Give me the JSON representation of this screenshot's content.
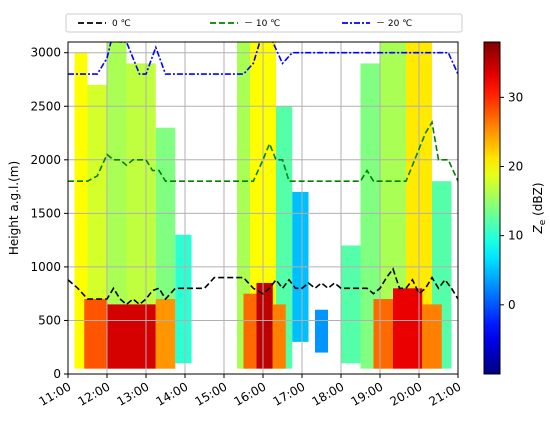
{
  "chart_data": {
    "type": "heatmap",
    "title": "",
    "xlabel": "",
    "ylabel": "Height a.g.l.(m)",
    "xlim": [
      "11:00",
      "21:00"
    ],
    "ylim": [
      0,
      3100
    ],
    "x_ticks": [
      "11:00",
      "12:00",
      "13:00",
      "14:00",
      "15:00",
      "16:00",
      "17:00",
      "18:00",
      "19:00",
      "20:00",
      "21:00"
    ],
    "y_ticks": [
      "0",
      "500",
      "1000",
      "1500",
      "2000",
      "2500",
      "3000"
    ],
    "grid": true,
    "colorbar": {
      "label_base": "Z",
      "label_sub": "e",
      "label_unit": " (dBZ)",
      "range": [
        -10,
        38
      ],
      "ticks": [
        "0",
        "10",
        "20",
        "30"
      ],
      "colormap": "jet"
    },
    "legend": {
      "placement": "top",
      "entries": [
        {
          "label": "0 ℃",
          "color": "#000000"
        },
        {
          "label": "－ 10 ℃",
          "color": "#008000"
        },
        {
          "label": "－ 20 ℃",
          "color": "#0000ff"
        }
      ]
    },
    "series": [
      {
        "name": "0 ℃",
        "color": "#000000",
        "x": [
          "11:00",
          "11:15",
          "11:30",
          "11:45",
          "12:00",
          "12:10",
          "12:20",
          "12:30",
          "12:40",
          "12:50",
          "13:00",
          "13:10",
          "13:20",
          "13:30",
          "13:45",
          "14:00",
          "14:15",
          "14:30",
          "14:45",
          "15:00",
          "15:15",
          "15:30",
          "15:45",
          "16:00",
          "16:10",
          "16:20",
          "16:30",
          "16:40",
          "16:50",
          "17:00",
          "17:10",
          "17:20",
          "17:30",
          "17:40",
          "17:50",
          "18:00",
          "18:10",
          "18:20",
          "18:30",
          "18:40",
          "18:50",
          "19:00",
          "19:10",
          "19:20",
          "19:30",
          "19:40",
          "19:50",
          "20:00",
          "20:10",
          "20:20",
          "20:30",
          "20:40",
          "20:50",
          "21:00"
        ],
        "y": [
          880,
          800,
          700,
          700,
          700,
          800,
          700,
          650,
          700,
          650,
          700,
          780,
          800,
          700,
          800,
          800,
          800,
          800,
          900,
          900,
          900,
          900,
          800,
          750,
          800,
          880,
          800,
          880,
          800,
          800,
          850,
          800,
          850,
          800,
          850,
          800,
          800,
          800,
          800,
          800,
          750,
          800,
          900,
          980,
          800,
          800,
          880,
          750,
          800,
          900,
          800,
          880,
          800,
          700
        ]
      },
      {
        "name": "－ 10 ℃",
        "color": "#008000",
        "x": [
          "11:00",
          "11:30",
          "11:45",
          "12:00",
          "12:10",
          "12:20",
          "12:30",
          "12:40",
          "12:50",
          "13:00",
          "13:10",
          "13:20",
          "13:30",
          "13:45",
          "14:00",
          "14:30",
          "15:00",
          "15:30",
          "15:45",
          "16:00",
          "16:10",
          "16:20",
          "16:30",
          "16:40",
          "16:50",
          "17:00",
          "17:30",
          "18:00",
          "18:30",
          "18:40",
          "18:50",
          "19:00",
          "19:20",
          "19:40",
          "19:50",
          "20:00",
          "20:10",
          "20:20",
          "20:30",
          "20:45",
          "21:00"
        ],
        "y": [
          1800,
          1800,
          1850,
          2050,
          2000,
          2000,
          1950,
          2000,
          2000,
          2000,
          1900,
          1900,
          1800,
          1800,
          1800,
          1800,
          1800,
          1800,
          1800,
          2000,
          2150,
          2000,
          2000,
          1800,
          1800,
          1800,
          1800,
          1800,
          1800,
          1900,
          1800,
          1800,
          1800,
          1800,
          1950,
          2100,
          2250,
          2350,
          2000,
          2000,
          1800
        ]
      },
      {
        "name": "－ 20 ℃",
        "color": "#0000ff",
        "x": [
          "11:00",
          "11:45",
          "12:00",
          "12:10",
          "12:20",
          "12:30",
          "12:40",
          "12:50",
          "13:00",
          "13:15",
          "13:30",
          "14:00",
          "14:30",
          "15:00",
          "15:30",
          "15:45",
          "16:00",
          "16:15",
          "16:30",
          "16:45",
          "17:00",
          "18:00",
          "18:30",
          "18:45",
          "19:00",
          "19:15",
          "19:30",
          "20:00",
          "20:30",
          "20:45",
          "21:00"
        ],
        "y": [
          2800,
          2800,
          2950,
          3200,
          3100,
          3100,
          2950,
          2800,
          2800,
          3050,
          2800,
          2800,
          2800,
          2800,
          2800,
          2900,
          3200,
          3100,
          2900,
          3000,
          3000,
          3000,
          3000,
          3000,
          3000,
          3000,
          3000,
          3000,
          3000,
          3000,
          2800
        ]
      }
    ],
    "reflectivity_blocks": [
      {
        "t0": "11:10",
        "t1": "11:30",
        "h0": 50,
        "h1": 3000,
        "dbz": 20
      },
      {
        "t0": "11:30",
        "t1": "12:00",
        "h0": 50,
        "h1": 2700,
        "dbz": 18
      },
      {
        "t0": "12:00",
        "t1": "12:30",
        "h0": 50,
        "h1": 3100,
        "dbz": 16
      },
      {
        "t0": "12:30",
        "t1": "13:15",
        "h0": 50,
        "h1": 2900,
        "dbz": 17
      },
      {
        "t0": "13:15",
        "t1": "13:45",
        "h0": 50,
        "h1": 2300,
        "dbz": 14
      },
      {
        "t0": "13:45",
        "t1": "14:10",
        "h0": 100,
        "h1": 1300,
        "dbz": 10
      },
      {
        "t0": "15:20",
        "t1": "15:40",
        "h0": 50,
        "h1": 3100,
        "dbz": 16
      },
      {
        "t0": "15:40",
        "t1": "16:20",
        "h0": 50,
        "h1": 3100,
        "dbz": 20
      },
      {
        "t0": "16:20",
        "t1": "16:45",
        "h0": 50,
        "h1": 2500,
        "dbz": 12
      },
      {
        "t0": "16:45",
        "t1": "17:10",
        "h0": 300,
        "h1": 1700,
        "dbz": 5
      },
      {
        "t0": "17:20",
        "t1": "17:40",
        "h0": 200,
        "h1": 600,
        "dbz": 3
      },
      {
        "t0": "18:00",
        "t1": "18:30",
        "h0": 100,
        "h1": 1200,
        "dbz": 12
      },
      {
        "t0": "18:30",
        "t1": "19:00",
        "h0": 50,
        "h1": 2900,
        "dbz": 14
      },
      {
        "t0": "19:00",
        "t1": "19:40",
        "h0": 50,
        "h1": 3100,
        "dbz": 16
      },
      {
        "t0": "19:40",
        "t1": "20:20",
        "h0": 50,
        "h1": 3100,
        "dbz": 21
      },
      {
        "t0": "20:20",
        "t1": "20:50",
        "h0": 50,
        "h1": 1800,
        "dbz": 12
      },
      {
        "t0": "11:25",
        "t1": "12:00",
        "h0": 50,
        "h1": 700,
        "dbz": 28
      },
      {
        "t0": "12:00",
        "t1": "13:15",
        "h0": 50,
        "h1": 650,
        "dbz": 34
      },
      {
        "t0": "13:15",
        "t1": "13:45",
        "h0": 50,
        "h1": 700,
        "dbz": 25
      },
      {
        "t0": "15:30",
        "t1": "15:50",
        "h0": 50,
        "h1": 750,
        "dbz": 27
      },
      {
        "t0": "15:50",
        "t1": "16:15",
        "h0": 50,
        "h1": 850,
        "dbz": 35
      },
      {
        "t0": "16:15",
        "t1": "16:35",
        "h0": 50,
        "h1": 650,
        "dbz": 26
      },
      {
        "t0": "18:50",
        "t1": "19:20",
        "h0": 50,
        "h1": 700,
        "dbz": 27
      },
      {
        "t0": "19:20",
        "t1": "20:05",
        "h0": 50,
        "h1": 800,
        "dbz": 33
      },
      {
        "t0": "20:05",
        "t1": "20:35",
        "h0": 50,
        "h1": 650,
        "dbz": 26
      }
    ]
  }
}
